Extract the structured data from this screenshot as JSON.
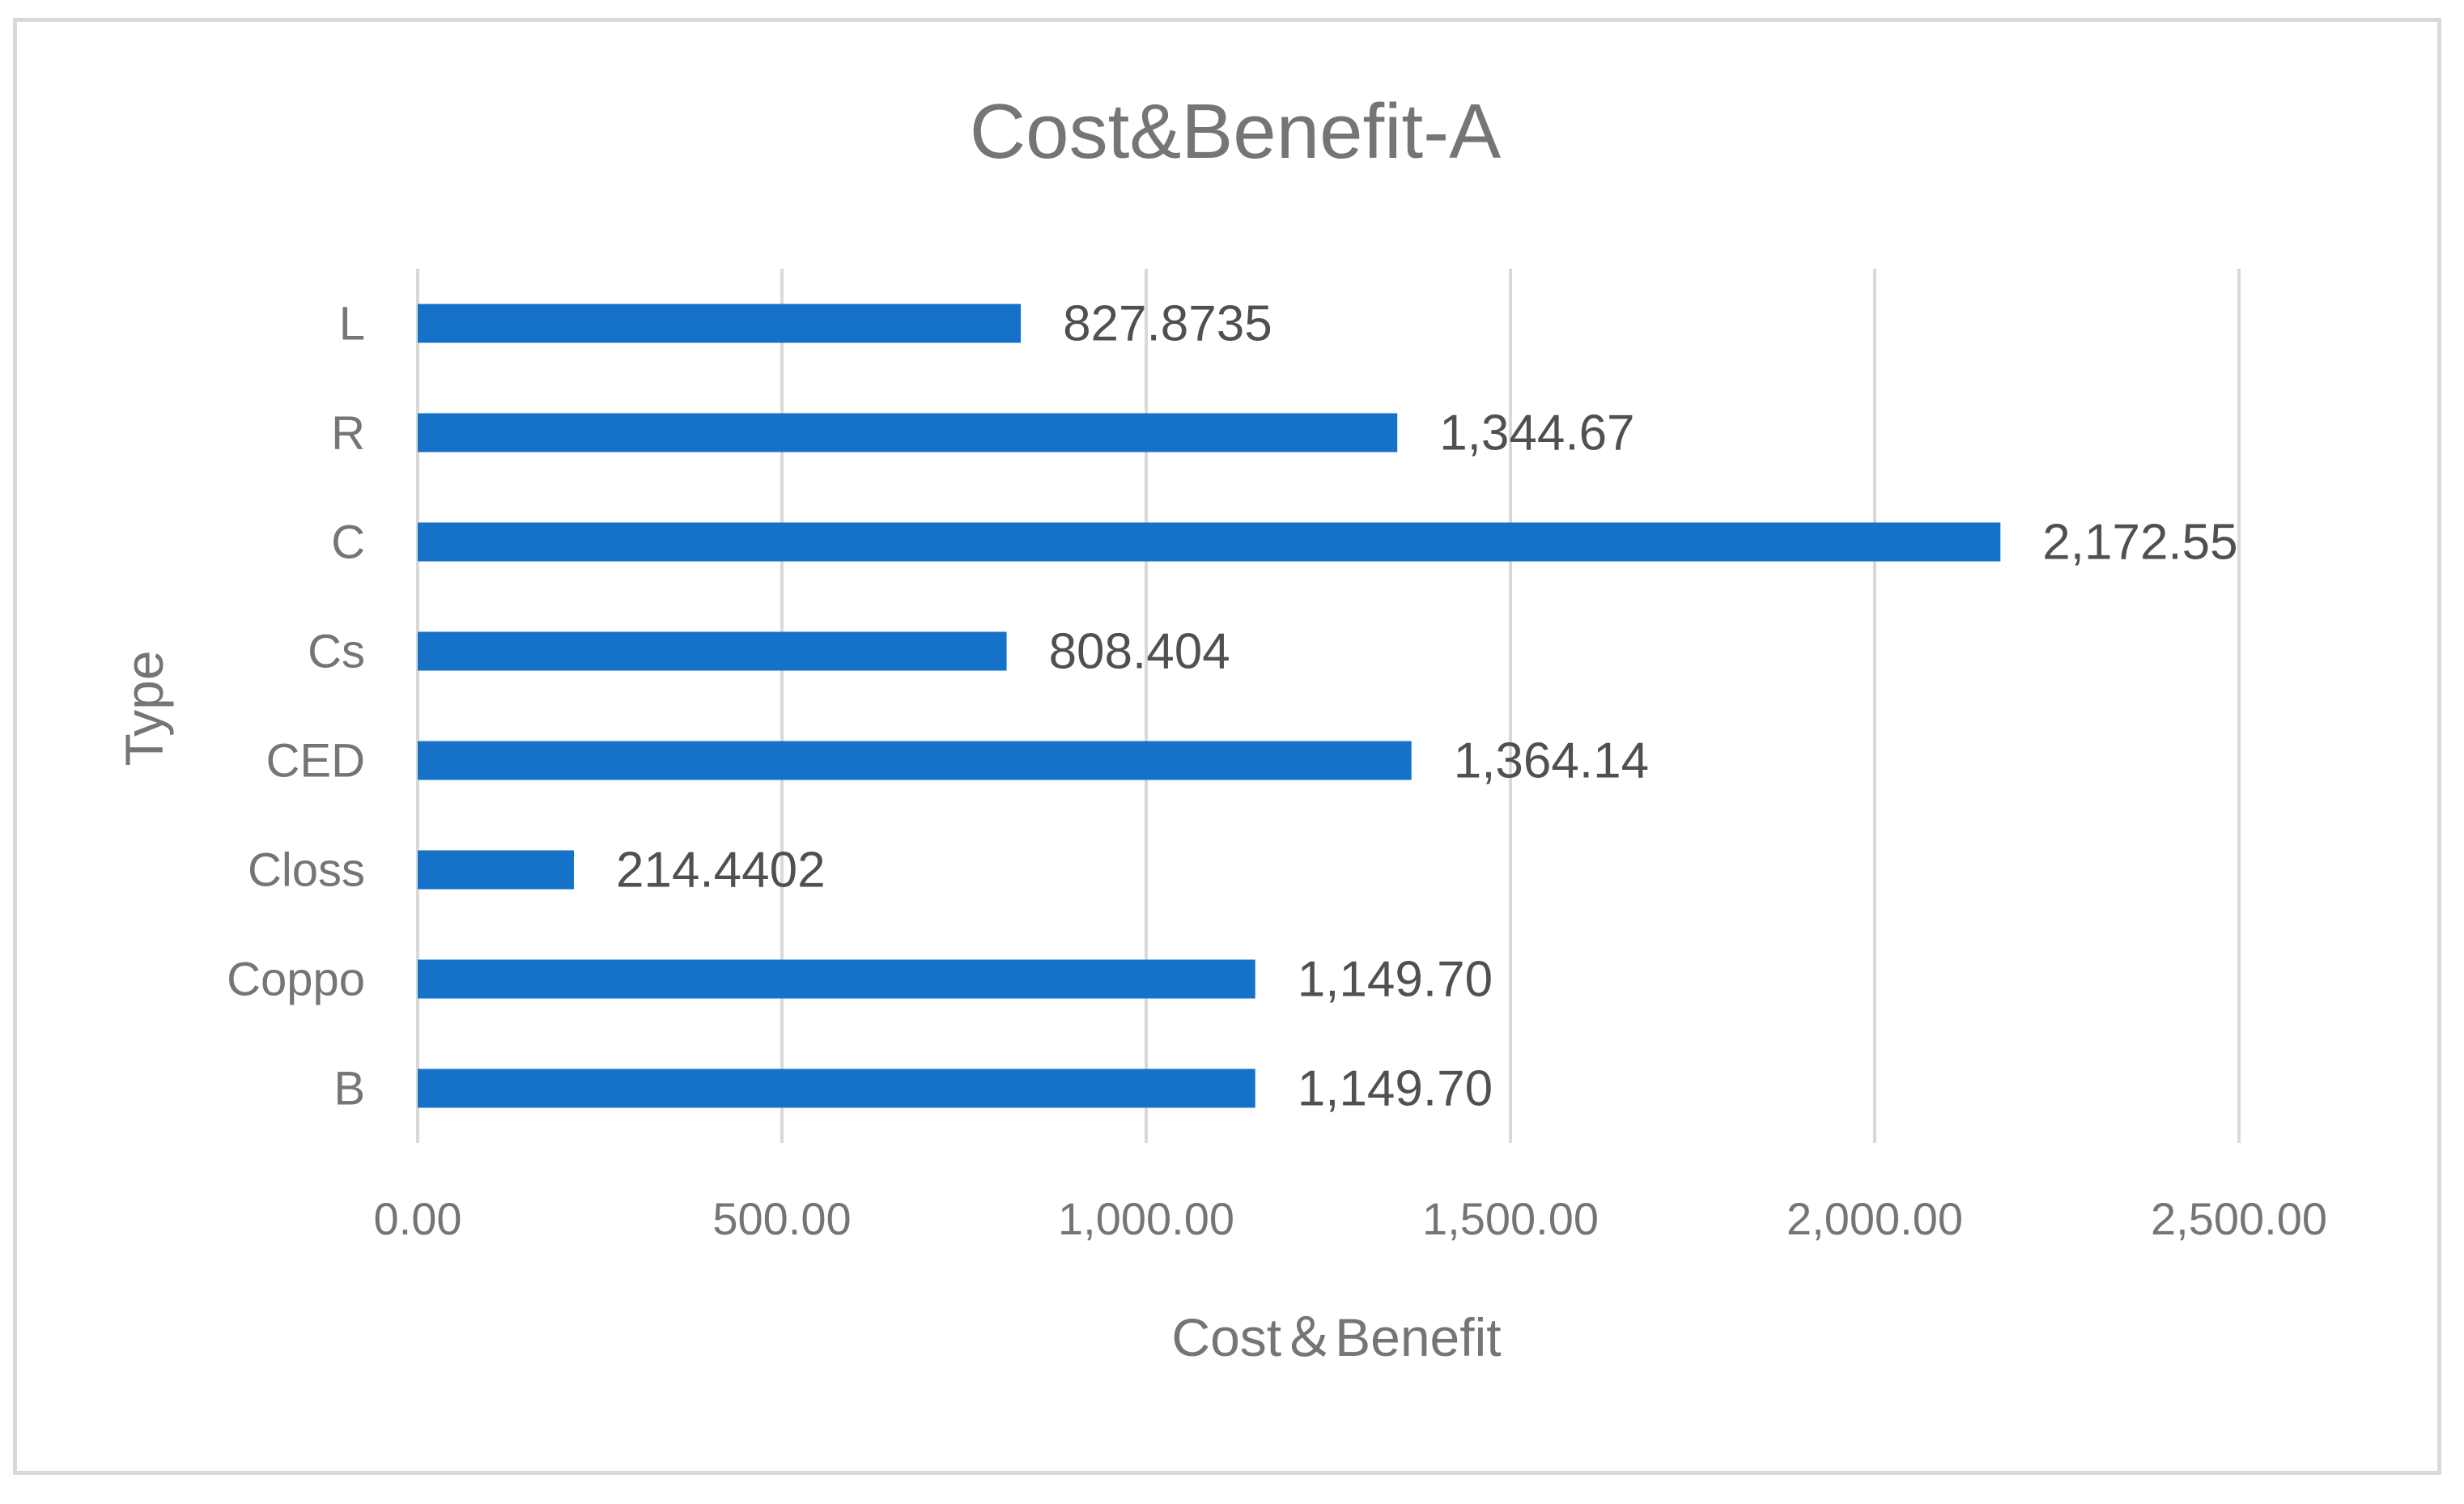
{
  "chart_data": {
    "type": "bar",
    "orientation": "horizontal",
    "title": "Cost&Benefit-A",
    "xlabel": "Cost＆Benefit",
    "ylabel": "Type",
    "categories": [
      "L",
      "R",
      "C",
      "Cs",
      "CED",
      "Closs",
      "Coppo",
      "B"
    ],
    "values": [
      827.8735,
      1344.67,
      2172.55,
      808.404,
      1364.14,
      214.4402,
      1149.7,
      1149.7
    ],
    "data_labels": [
      "827.8735",
      "1,344.67",
      "2,172.55",
      "808.404",
      "1,364.14",
      "214.4402",
      "1,149.70",
      "1,149.70"
    ],
    "xlim": [
      0,
      2500
    ],
    "xticks": [
      0,
      500,
      1000,
      1500,
      2000,
      2500
    ],
    "xtick_labels": [
      "0.00",
      "500.00",
      "1,000.00",
      "1,500.00",
      "2,000.00",
      "2,500.00"
    ],
    "grid": true,
    "legend": "none",
    "bar_color": "#1672C8",
    "grid_color": "#d9d9d9"
  }
}
